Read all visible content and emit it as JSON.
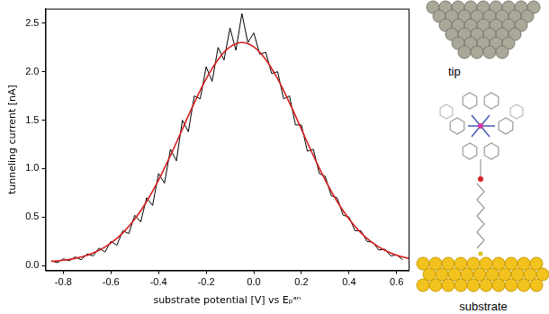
{
  "chart_data": {
    "type": "line",
    "x_label": "substrate potential [V] vs Eₚᵃⁿ",
    "y_label": "tunneling current [nA]",
    "xlim": [
      -0.875,
      0.65
    ],
    "ylim": [
      -0.05,
      2.65
    ],
    "xticks": [
      -0.8,
      -0.6,
      -0.4,
      -0.2,
      {
        "value": 0,
        "label": "0.0"
      },
      0.2,
      0.4,
      0.6
    ],
    "yticks": [
      {
        "value": 0,
        "label": "0.0"
      },
      0.5,
      {
        "value": 1,
        "label": "1.0"
      },
      1.5,
      {
        "value": 2,
        "label": "2.0"
      },
      2.5
    ],
    "grid": false,
    "series": [
      {
        "color": "#000000",
        "line_style": "solid",
        "x": [
          -0.85,
          -0.825,
          -0.8,
          -0.775,
          -0.75,
          -0.725,
          -0.7,
          -0.675,
          -0.65,
          -0.625,
          -0.6,
          -0.575,
          -0.55,
          -0.525,
          -0.5,
          -0.475,
          -0.45,
          -0.425,
          -0.4,
          -0.375,
          -0.35,
          -0.325,
          -0.3,
          -0.275,
          -0.25,
          -0.225,
          -0.2,
          -0.175,
          -0.15,
          -0.125,
          -0.1,
          -0.075,
          -0.05,
          -0.025,
          0.0,
          0.025,
          0.05,
          0.075,
          0.1,
          0.125,
          0.15,
          0.175,
          0.2,
          0.225,
          0.25,
          0.275,
          0.3,
          0.325,
          0.35,
          0.375,
          0.4,
          0.425,
          0.45,
          0.475,
          0.5,
          0.525,
          0.55,
          0.575,
          0.6,
          0.625
        ],
        "values": [
          0.05,
          0.03,
          0.07,
          0.05,
          0.09,
          0.06,
          0.12,
          0.1,
          0.18,
          0.14,
          0.25,
          0.21,
          0.36,
          0.33,
          0.52,
          0.45,
          0.7,
          0.62,
          0.95,
          0.85,
          1.2,
          1.08,
          1.5,
          1.38,
          1.75,
          1.72,
          2.05,
          1.9,
          2.25,
          2.12,
          2.45,
          2.22,
          2.6,
          2.3,
          2.4,
          2.18,
          2.2,
          1.98,
          2.0,
          1.72,
          1.75,
          1.45,
          1.45,
          1.18,
          1.2,
          0.95,
          0.92,
          0.72,
          0.7,
          0.52,
          0.5,
          0.36,
          0.36,
          0.25,
          0.24,
          0.16,
          0.17,
          0.1,
          0.11,
          0.06
        ]
      },
      {
        "color": "#d62020",
        "line_style": "solid",
        "x": [
          -0.85,
          -0.8,
          -0.75,
          -0.7,
          -0.65,
          -0.6,
          -0.55,
          -0.5,
          -0.45,
          -0.4,
          -0.35,
          -0.3,
          -0.25,
          -0.2,
          -0.15,
          -0.1,
          -0.05,
          0.0,
          0.05,
          0.1,
          0.15,
          0.2,
          0.25,
          0.3,
          0.35,
          0.4,
          0.45,
          0.5,
          0.55,
          0.6,
          0.65
        ],
        "values": [
          0.044,
          0.055,
          0.075,
          0.107,
          0.157,
          0.232,
          0.337,
          0.479,
          0.661,
          0.882,
          1.135,
          1.407,
          1.678,
          1.926,
          2.125,
          2.255,
          2.3,
          2.255,
          2.125,
          1.926,
          1.678,
          1.407,
          1.135,
          0.882,
          0.661,
          0.479,
          0.337,
          0.232,
          0.157,
          0.107,
          0.075
        ]
      }
    ],
    "annotations": [
      "tip",
      "substrate"
    ]
  }
}
